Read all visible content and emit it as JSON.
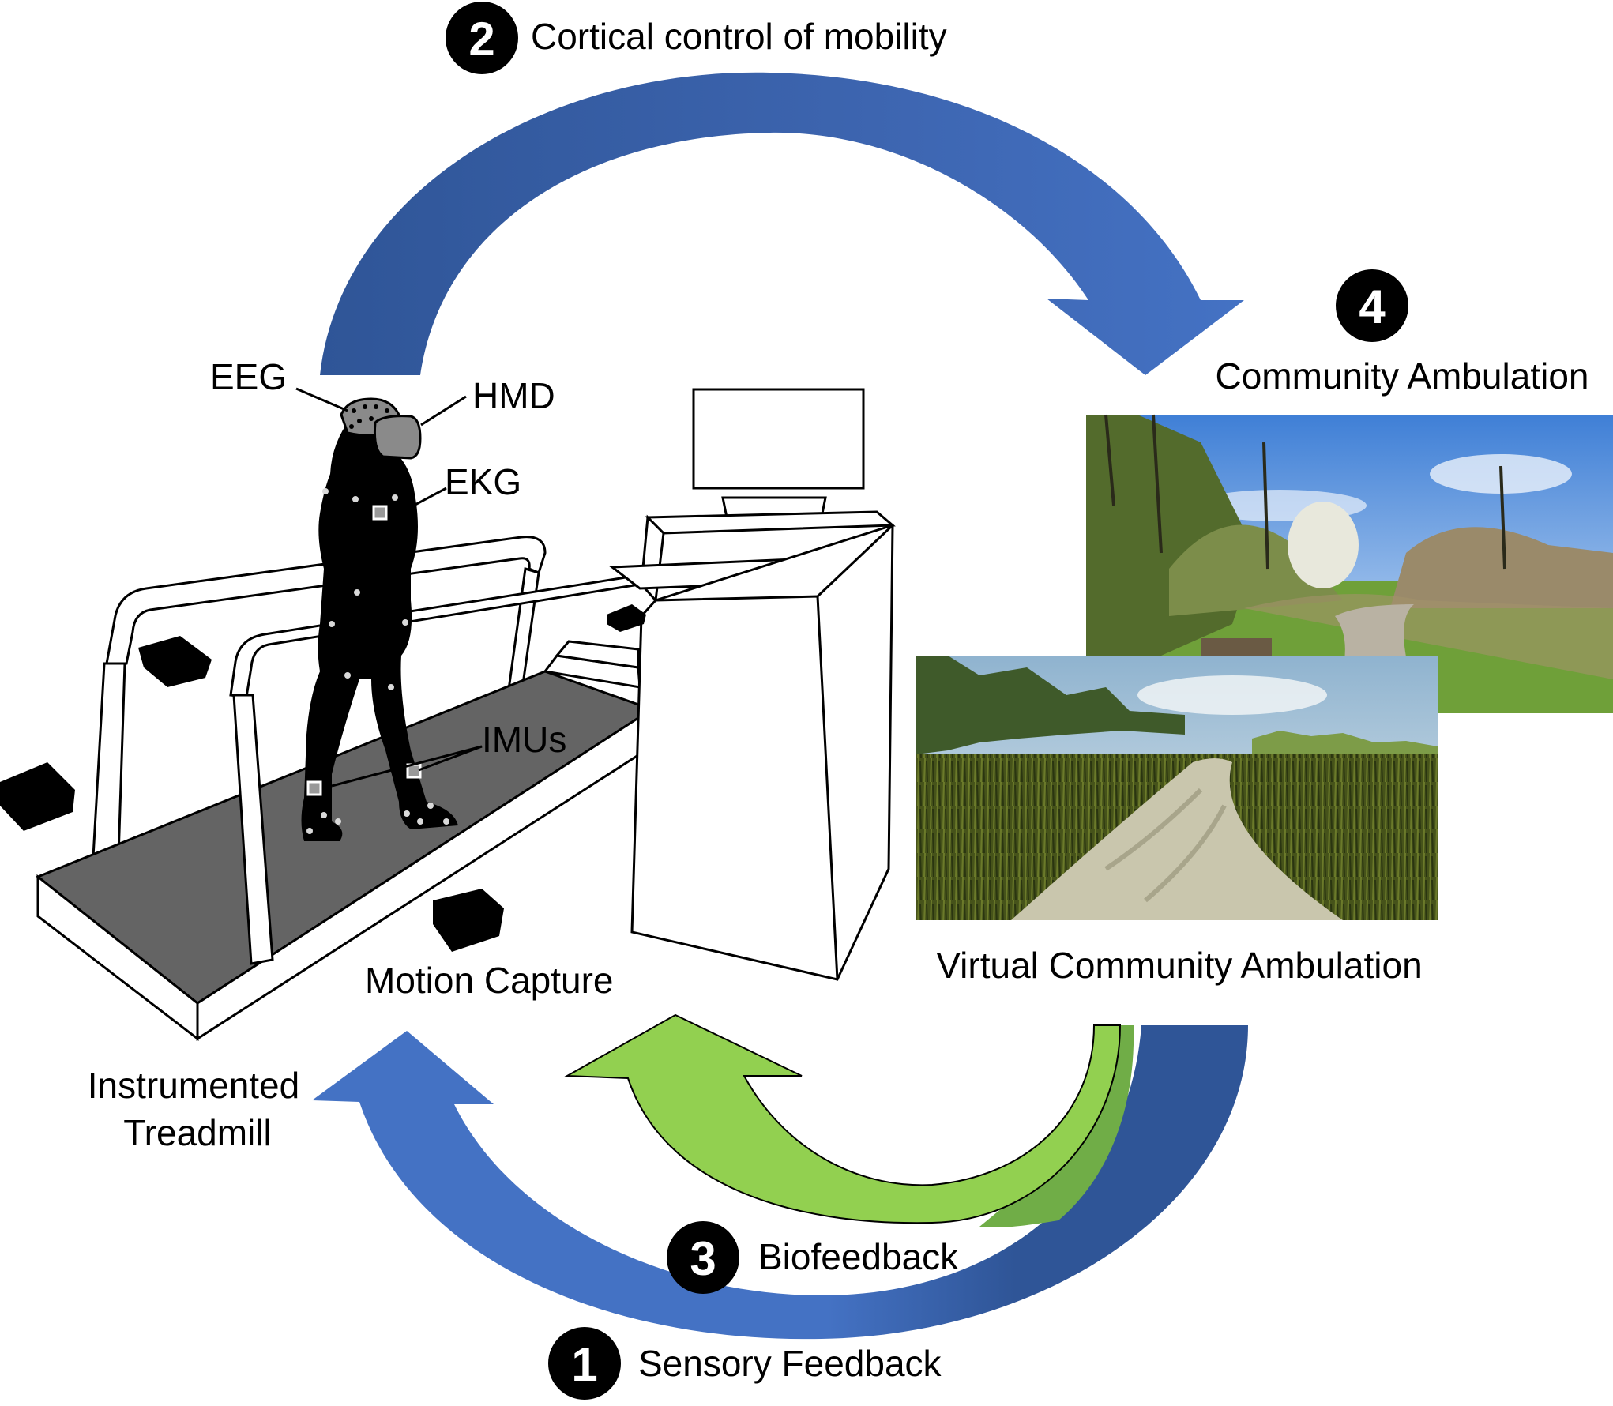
{
  "steps": [
    {
      "number": "1",
      "label": "Sensory Feedback"
    },
    {
      "number": "2",
      "label": "Cortical control of mobility"
    },
    {
      "number": "3",
      "label": "Biofeedback"
    },
    {
      "number": "4",
      "label": "Community Ambulation"
    }
  ],
  "labels": {
    "eeg": "EEG",
    "hmd": "HMD",
    "ekg": "EKG",
    "imus": "IMUs",
    "motion_capture": "Motion Capture",
    "instrumented_treadmill_line1": "Instrumented",
    "instrumented_treadmill_line2": "Treadmill",
    "virtual_community_ambulation": "Virtual Community Ambulation"
  },
  "colors": {
    "arrow_blue": "#4472c4",
    "arrow_blue_dark": "#2f5597",
    "arrow_green": "#92d050",
    "arrow_green_dark": "#70ad47",
    "treadmill_belt": "#646464",
    "silhouette": "#000000"
  },
  "icons": {
    "photo_real_path": "real-park-path-photo",
    "photo_virtual_path": "virtual-park-path-render"
  }
}
